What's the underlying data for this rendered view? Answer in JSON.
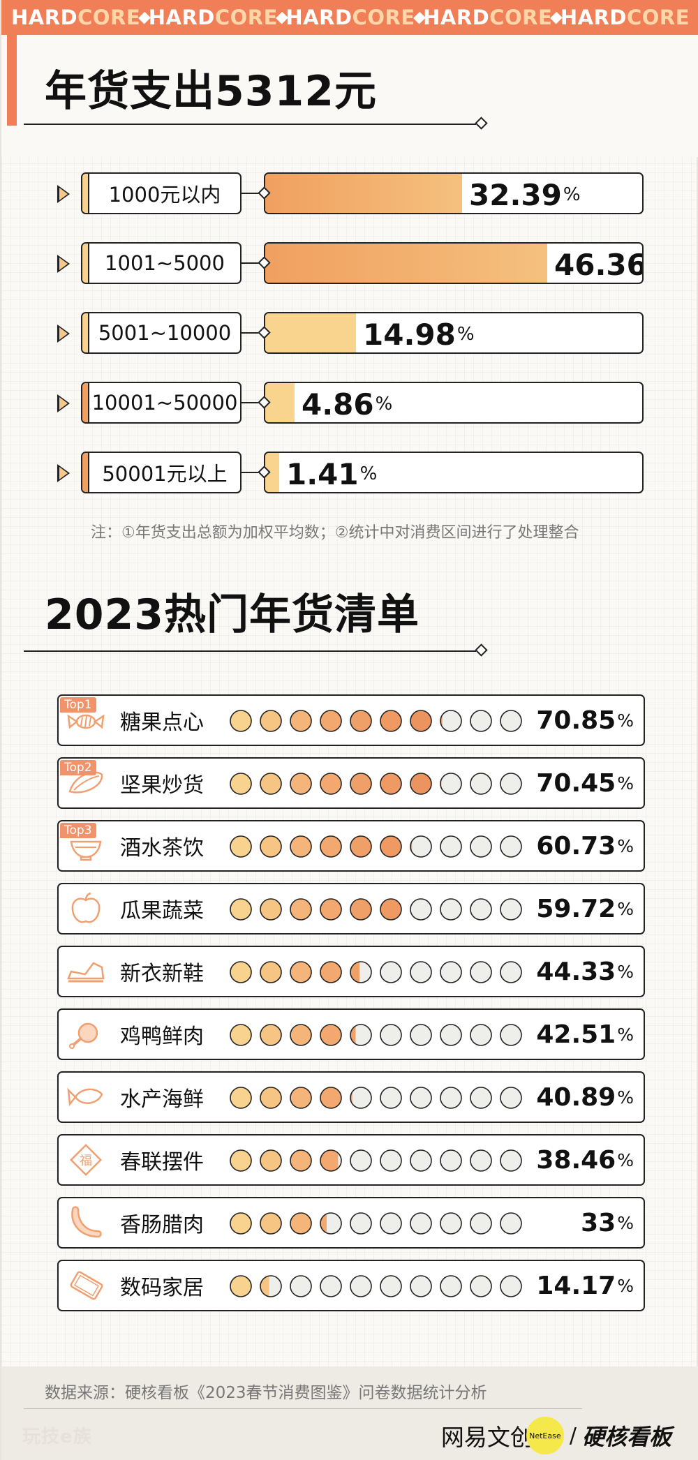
{
  "banner": {
    "items": [
      {
        "white": "HARD",
        "orange": "CORE"
      },
      {
        "white": "HARD",
        "orange": "CORE"
      },
      {
        "white": "HARD",
        "orange": "CORE"
      },
      {
        "white": "HARD",
        "orange": "CORE"
      },
      {
        "white": "HARD",
        "orange": "CORE"
      }
    ]
  },
  "section1": {
    "title": "年货支出5312元",
    "note": "注：①年货支出总额为加权平均数；②统计中对消费区间进行了处理整合"
  },
  "section2": {
    "title": "2023热门年货清单"
  },
  "colors": {
    "accent": "#f07f58",
    "bar_dark": "#f0a060",
    "bar_light": "#f8d28f",
    "dot_empty": "#eeeeea",
    "dot_light": "#f8d28f",
    "dot_mid": "#f5b57a",
    "dot_dark": "#ef9a62"
  },
  "chart_data": [
    {
      "type": "bar",
      "title": "年货支出5312元",
      "categories": [
        "1000元以内",
        "1001~5000",
        "5001~10000",
        "10001~50000",
        "50001元以上"
      ],
      "values": [
        32.39,
        46.36,
        14.98,
        4.86,
        1.41
      ],
      "value_labels": [
        "32.39",
        "46.36",
        "14.98",
        "4.86",
        "1.41"
      ],
      "unit": "%",
      "xlim": [
        0,
        100
      ]
    },
    {
      "type": "bar",
      "title": "2023热门年货清单",
      "categories": [
        "糖果点心",
        "坚果炒货",
        "酒水茶饮",
        "瓜果蔬菜",
        "新衣新鞋",
        "鸡鸭鲜肉",
        "水产海鲜",
        "春联摆件",
        "香肠腊肉",
        "数码家居"
      ],
      "values": [
        70.85,
        70.45,
        60.73,
        59.72,
        44.33,
        42.51,
        40.89,
        38.46,
        33,
        14.17
      ],
      "value_labels": [
        "70.85",
        "70.45",
        "60.73",
        "59.72",
        "44.33",
        "42.51",
        "40.89",
        "38.46",
        "33",
        "14.17"
      ],
      "badges": [
        "Top1",
        "Top2",
        "Top3",
        "",
        "",
        "",
        "",
        "",
        "",
        ""
      ],
      "icons": [
        "candy-icon",
        "seed-icon",
        "bowl-icon",
        "apple-icon",
        "shoe-icon",
        "meat-icon",
        "fish-icon",
        "fu-icon",
        "sausage-icon",
        "tablet-icon"
      ],
      "unit": "%",
      "scale": "10 dots, each dot = 10%"
    }
  ],
  "footer": {
    "source": "数据来源：硬核看板《2023春节消费图鉴》问卷数据统计分析",
    "left_logo": "玩技e族",
    "netease_text": "网易文创",
    "netease_dot": "NetEase",
    "slash": "/",
    "hardcore_cn": "硬核看板"
  }
}
